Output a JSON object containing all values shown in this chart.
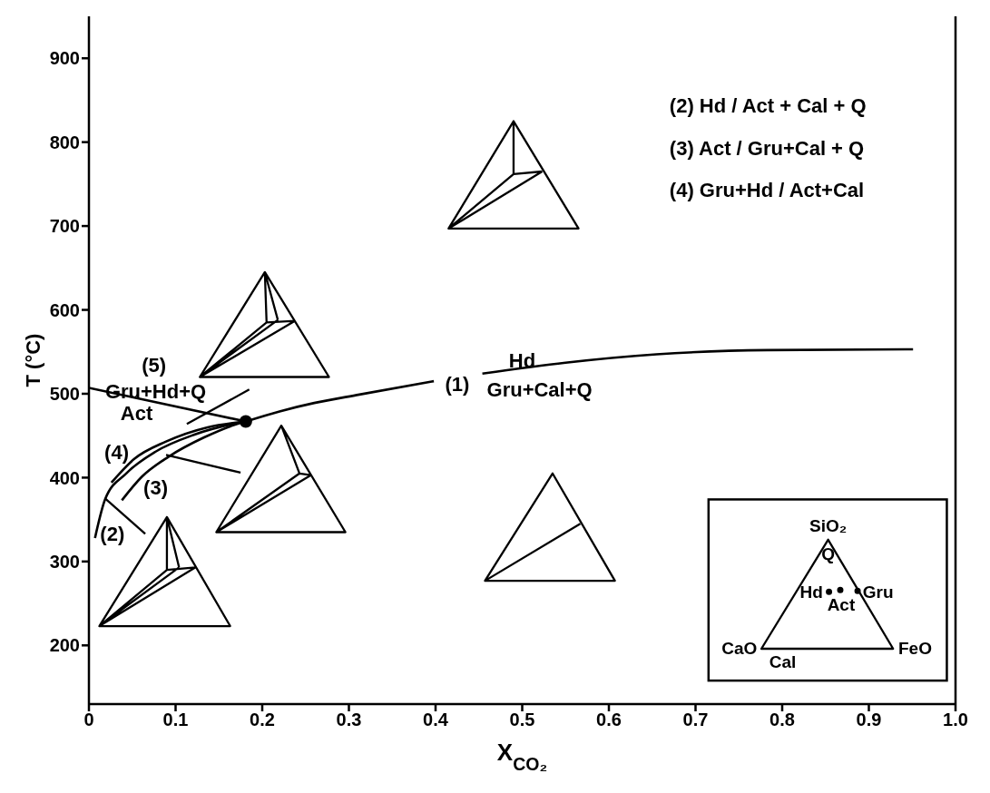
{
  "chart_data": {
    "type": "line",
    "xlabel": "X$_{CO₂}$",
    "ylabel": "T (°C)",
    "xlim": [
      0,
      1
    ],
    "ylim": [
      130,
      950
    ],
    "xticks": [
      0,
      0.1,
      0.2,
      0.3,
      0.4,
      0.5,
      0.6,
      0.7,
      0.8,
      0.9,
      {
        "value": 1,
        "label": "1.0"
      }
    ],
    "yticks": [
      200,
      300,
      400,
      500,
      600,
      700,
      800,
      900
    ],
    "line_style": "solid",
    "series": [
      {
        "color": "#000000",
        "x": [
          0.181,
          0.22,
          0.26,
          0.312,
          0.398,
          0.425,
          0.454,
          0.55,
          0.655,
          0.783,
          0.951
        ],
        "values": [
          467,
          479,
          489,
          499,
          515,
          null,
          524,
          537,
          547,
          552,
          553
        ]
      },
      {
        "color": "#000000",
        "x": [
          0,
          0.181
        ],
        "values": [
          507,
          467
        ]
      },
      {
        "color": "#000000",
        "x": [
          0.026,
          0.052,
          0.089,
          0.137,
          0.181
        ],
        "values": [
          394,
          422,
          443,
          460,
          467
        ]
      },
      {
        "color": "#000000",
        "x": [
          0.007,
          0.019,
          0.043,
          0.077,
          0.121,
          0.171,
          0.181
        ],
        "values": [
          328,
          375,
          405,
          431,
          451,
          465,
          467
        ]
      },
      {
        "color": "#000000",
        "x": [
          0.038,
          0.061,
          0.092,
          0.133,
          0.171,
          0.181
        ],
        "values": [
          373,
          401,
          425,
          448,
          464,
          467
        ]
      },
      {
        "type": "scatter",
        "color": "#000000",
        "x": [
          0.181
        ],
        "values": [
          467
        ]
      }
    ],
    "annotations": [
      "(1)",
      "Hd",
      "Gru+Cal+Q",
      "(5)",
      "Gru+Hd+Q",
      "Act",
      "(4)",
      "(3)",
      "(2)",
      "(2) Hd / Act + Cal + Q",
      "(3) Act / Gru+Cal + Q",
      "(4) Gru+Hd / Act+Cal",
      "SiO₂",
      "Q",
      "Hd",
      "Act",
      "Gru",
      "CaO",
      "Cal",
      "FeO"
    ]
  }
}
